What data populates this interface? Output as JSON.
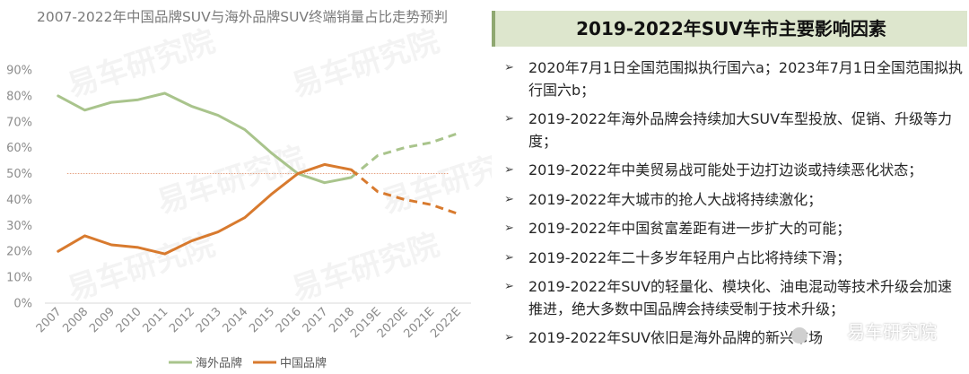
{
  "chart_data": {
    "type": "line",
    "title": "2007-2022年中国品牌SUV与海外品牌SUV终端销量占比走势预判",
    "categories": [
      "2007",
      "2008",
      "2009",
      "2010",
      "2011",
      "2012",
      "2013",
      "2014",
      "2015",
      "2016",
      "2017",
      "2018",
      "2019E",
      "2020E",
      "2021E",
      "2022E"
    ],
    "y_ticks": [
      "0%",
      "10%",
      "20%",
      "30%",
      "40%",
      "50%",
      "60%",
      "70%",
      "80%",
      "90%"
    ],
    "ylim": [
      0,
      90
    ],
    "unit": "%",
    "series": [
      {
        "name": "海外品牌",
        "color": "#a9c48c",
        "values": [
          80,
          74.5,
          77.5,
          78.5,
          81,
          76,
          72.5,
          67,
          58,
          50,
          46.5,
          48.5,
          57,
          60,
          62,
          65.5
        ],
        "projected_from_index": 11
      },
      {
        "name": "中国品牌",
        "color": "#d87a2e",
        "values": [
          20,
          26,
          22.5,
          21.5,
          19,
          24,
          27.5,
          33,
          42,
          50,
          53.5,
          51.5,
          43,
          40,
          38,
          34.5
        ],
        "projected_from_index": 11
      }
    ],
    "reference_line": {
      "value": 50,
      "color": "#e5a080"
    },
    "legend_position": "bottom",
    "grid": false
  },
  "panel": {
    "title": "2019-2022年SUV车市主要影响因素",
    "bullet_glyph": "➢",
    "items": [
      "2020年7月1日全国范围拟执行国六a；2023年7月1日全国范围拟执行国六b；",
      "2019-2022年海外品牌会持续加大SUV车型投放、促销、升级等力度；",
      "2019-2022年中美贸易战可能处于边打边谈或持续恶化状态；",
      "2019-2022年大城市的抢人大战将持续激化；",
      "2019-2022年中国贫富差距有进一步扩大的可能；",
      "2019-2022年二十多岁年轻用户占比将持续下滑；",
      "2019-2022年SUV的轻量化、模块化、油电混动等技术升级会加速推进，绝大多数中国品牌会持续受制于技术升级；",
      "2019-2022年SUV依旧是海外品牌的新兴市场"
    ]
  },
  "watermark": {
    "text": "易车研究院"
  }
}
